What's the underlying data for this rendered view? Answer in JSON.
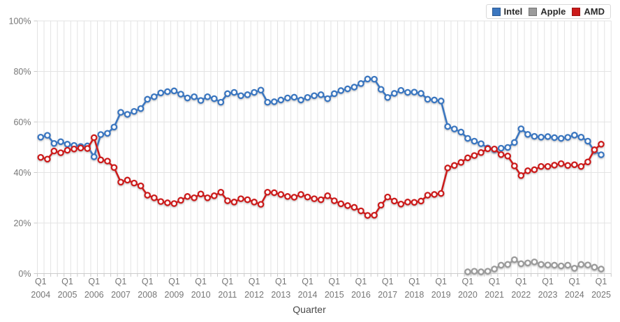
{
  "chart": {
    "x_axis_title": "Quarter",
    "legend": [
      {
        "label": "Intel",
        "color": "#3b77c0"
      },
      {
        "label": "Apple",
        "color": "#9b9b9b"
      },
      {
        "label": "AMD",
        "color": "#cc1b1b"
      }
    ],
    "colors": {
      "grid": "#e3e3e3",
      "axis_line": "#cccccc",
      "tick": "#c9c9c9",
      "tick_text": "#767676",
      "axis_title_text": "#4a4a4a"
    }
  },
  "chart_data": {
    "type": "line",
    "title": "",
    "xlabel": "Quarter",
    "ylabel": "",
    "x_interval": "quarter",
    "x_start": "Q1 2004",
    "x_end": "Q1 2025",
    "x_tick_prefix": "Q1",
    "x_tick_years": [
      2004,
      2005,
      2006,
      2007,
      2008,
      2009,
      2010,
      2011,
      2012,
      2013,
      2014,
      2015,
      2016,
      2017,
      2018,
      2019,
      2020,
      2021,
      2022,
      2023,
      2024,
      2025
    ],
    "ylim": [
      0,
      100
    ],
    "y_tick_labels": [
      "0%",
      "20%",
      "40%",
      "60%",
      "80%",
      "100%"
    ],
    "y_tick_values": [
      0,
      20,
      40,
      60,
      80,
      100
    ],
    "grid": true,
    "legend_position": "top-right",
    "marker": "open-circle",
    "series": [
      {
        "name": "Intel",
        "color": "#3b77c0",
        "start_quarter": "Q1 2004",
        "values": [
          54.0,
          54.7,
          51.5,
          52.2,
          51.2,
          50.7,
          50.3,
          50.5,
          46.2,
          55.0,
          55.5,
          58.0,
          63.8,
          63.0,
          64.2,
          65.3,
          69.0,
          70.0,
          71.5,
          72.0,
          72.3,
          71.0,
          69.5,
          70.0,
          68.5,
          70.0,
          69.2,
          67.8,
          71.2,
          71.7,
          70.4,
          70.8,
          71.7,
          72.6,
          67.8,
          68.0,
          68.7,
          69.5,
          69.8,
          68.7,
          69.7,
          70.4,
          70.8,
          69.2,
          71.2,
          72.4,
          73.1,
          73.8,
          75.2,
          77.0,
          76.9,
          72.9,
          69.7,
          71.3,
          72.5,
          71.7,
          71.8,
          71.3,
          69.0,
          68.7,
          68.3,
          58.2,
          57.2,
          56.0,
          53.5,
          52.4,
          51.4,
          49.7,
          48.9,
          49.6,
          49.9,
          51.9,
          57.3,
          55.1,
          54.3,
          54.0,
          54.2,
          53.8,
          53.5,
          53.9,
          54.8,
          54.0,
          52.4,
          48.5,
          47.0
        ]
      },
      {
        "name": "Apple",
        "color": "#9b9b9b",
        "start_quarter": "Q1 2020",
        "start_index": 64,
        "values": [
          0.7,
          0.9,
          0.7,
          0.9,
          1.8,
          3.3,
          3.6,
          5.5,
          3.9,
          4.2,
          4.6,
          3.6,
          3.4,
          3.3,
          3.0,
          3.3,
          2.1,
          3.6,
          3.4,
          2.5,
          1.8
        ]
      },
      {
        "name": "AMD",
        "color": "#cc1b1b",
        "start_quarter": "Q1 2004",
        "values": [
          46.0,
          45.3,
          48.5,
          47.8,
          48.8,
          49.3,
          49.7,
          49.5,
          53.8,
          45.0,
          44.5,
          42.0,
          36.2,
          37.0,
          35.8,
          34.7,
          31.0,
          30.0,
          28.5,
          28.0,
          27.7,
          29.0,
          30.5,
          30.0,
          31.5,
          30.0,
          30.8,
          32.2,
          28.8,
          28.3,
          29.6,
          29.2,
          28.3,
          27.4,
          32.2,
          32.0,
          31.3,
          30.5,
          30.2,
          31.3,
          30.3,
          29.6,
          29.2,
          30.8,
          28.8,
          27.6,
          26.9,
          26.2,
          24.8,
          23.0,
          23.1,
          27.1,
          30.3,
          28.7,
          27.5,
          28.3,
          28.2,
          28.7,
          31.0,
          31.3,
          31.7,
          41.8,
          42.8,
          44.0,
          45.8,
          46.7,
          47.9,
          49.4,
          49.3,
          47.1,
          46.5,
          42.6,
          38.8,
          40.7,
          41.1,
          42.4,
          42.4,
          42.9,
          43.5,
          42.8,
          43.1,
          42.4,
          44.2,
          49.0,
          51.2
        ]
      }
    ]
  }
}
